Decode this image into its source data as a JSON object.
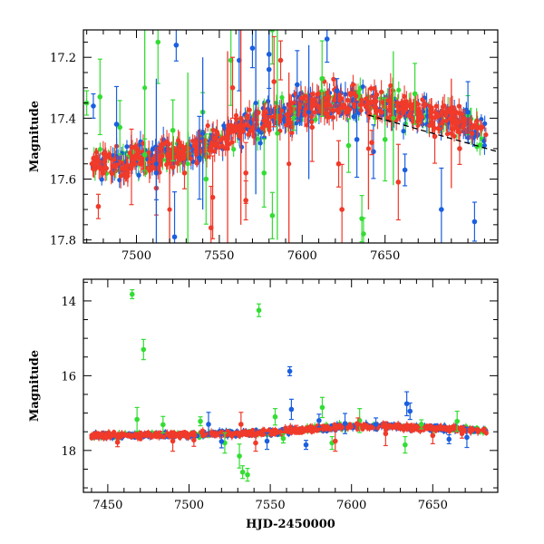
{
  "chart_data": [
    {
      "type": "scatter",
      "panel": "top",
      "ylabel": "Magnitude",
      "xlabel": "",
      "xlim": [
        7468,
        7718
      ],
      "ylim": [
        17.81,
        17.11
      ],
      "y_inverted": true,
      "xticks": [
        7500,
        7550,
        7600,
        7650
      ],
      "yticks": [
        17.2,
        17.4,
        17.6,
        17.8
      ],
      "colors": {
        "green": "#33dd33",
        "blue": "#1a5fe0",
        "red": "#f03a2a",
        "trend": "#000000"
      },
      "trend_line": {
        "x": [
          7640,
          7718
        ],
        "y": [
          17.39,
          17.51
        ],
        "style": "dashed"
      },
      "mean_curve": {
        "x": [
          7468,
          7500,
          7530,
          7550,
          7560,
          7580,
          7600,
          7620,
          7640,
          7660,
          7680,
          7700,
          7710
        ],
        "y": [
          17.56,
          17.54,
          17.51,
          17.47,
          17.44,
          17.4,
          17.37,
          17.35,
          17.35,
          17.37,
          17.39,
          17.42,
          17.45
        ]
      },
      "series": [
        {
          "name": "",
          "color": "green",
          "x": [
            7470,
            7478,
            7490,
            7505,
            7513,
            7522,
            7540,
            7557,
            7577,
            7582,
            7595,
            7612,
            7628,
            7637,
            7650,
            7668,
            7700,
            7542,
            7582,
            7636
          ],
          "y": [
            17.35,
            17.33,
            17.43,
            17.52,
            17.15,
            17.44,
            17.38,
            17.21,
            17.58,
            17.72,
            17.4,
            17.27,
            17.49,
            17.78,
            17.47,
            17.32,
            17.39,
            17.6,
            17.11,
            17.73
          ]
        },
        {
          "name": "",
          "color": "blue",
          "x": [
            7474,
            7488,
            7512,
            7524,
            7538,
            7562,
            7570,
            7580,
            7597,
            7615,
            7621,
            7633,
            7643,
            7662,
            7684,
            7700,
            7704,
            7523,
            7580
          ],
          "y": [
            17.36,
            17.42,
            17.58,
            17.16,
            17.53,
            17.21,
            17.17,
            17.24,
            17.29,
            17.14,
            17.31,
            17.47,
            17.51,
            17.57,
            17.7,
            17.38,
            17.74,
            17.79,
            17.19
          ]
        },
        {
          "name": "",
          "color": "red",
          "x": [
            7477,
            7497,
            7512,
            7529,
            7546,
            7558,
            7566,
            7583,
            7606,
            7622,
            7642,
            7658,
            7680,
            7695,
            7545,
            7566,
            7587,
            7624
          ],
          "y": [
            17.69,
            17.56,
            17.63,
            17.58,
            17.66,
            17.3,
            17.67,
            17.28,
            17.43,
            17.55,
            17.48,
            17.61,
            17.46,
            17.5,
            17.76,
            17.58,
            17.21,
            17.7
          ]
        }
      ]
    },
    {
      "type": "scatter",
      "panel": "bottom",
      "ylabel": "Magnitude",
      "xlabel": "HJD-2450000",
      "xlim": [
        7435,
        7690
      ],
      "ylim": [
        19.12,
        13.42
      ],
      "y_inverted": true,
      "xticks": [
        7450,
        7500,
        7550,
        7600,
        7650
      ],
      "yticks": [
        14,
        16,
        18
      ],
      "mean_curve": {
        "x": [
          7440,
          7480,
          7520,
          7550,
          7570,
          7590,
          7610,
          7630,
          7650,
          7670,
          7685
        ],
        "y": [
          17.6,
          17.59,
          17.56,
          17.52,
          17.45,
          17.38,
          17.35,
          17.37,
          17.4,
          17.44,
          17.48
        ]
      },
      "series": [
        {
          "name": "",
          "color": "green",
          "x": [
            7465,
            7472,
            7543,
            7468,
            7484,
            7507,
            7522,
            7533,
            7531,
            7553,
            7558,
            7582,
            7588,
            7605,
            7633,
            7643,
            7665,
            7536
          ],
          "y": [
            13.82,
            15.3,
            14.25,
            17.17,
            17.31,
            17.22,
            17.8,
            18.58,
            18.15,
            17.1,
            17.68,
            16.85,
            17.8,
            17.2,
            17.85,
            17.3,
            17.22,
            18.65
          ]
        },
        {
          "name": "",
          "color": "blue",
          "x": [
            7562,
            7563,
            7580,
            7512,
            7548,
            7572,
            7596,
            7615,
            7634,
            7636,
            7660,
            7671,
            7520
          ],
          "y": [
            15.88,
            16.9,
            17.2,
            17.3,
            17.75,
            17.85,
            17.28,
            17.3,
            16.75,
            16.95,
            17.7,
            17.65,
            17.76
          ]
        },
        {
          "name": "",
          "color": "red",
          "x": [
            7456,
            7490,
            7503,
            7532,
            7541,
            7566,
            7590,
            7604,
            7621,
            7650,
            7668
          ],
          "y": [
            17.78,
            17.75,
            17.72,
            17.3,
            17.8,
            17.45,
            17.75,
            17.3,
            17.55,
            17.6,
            17.55
          ]
        }
      ]
    }
  ]
}
